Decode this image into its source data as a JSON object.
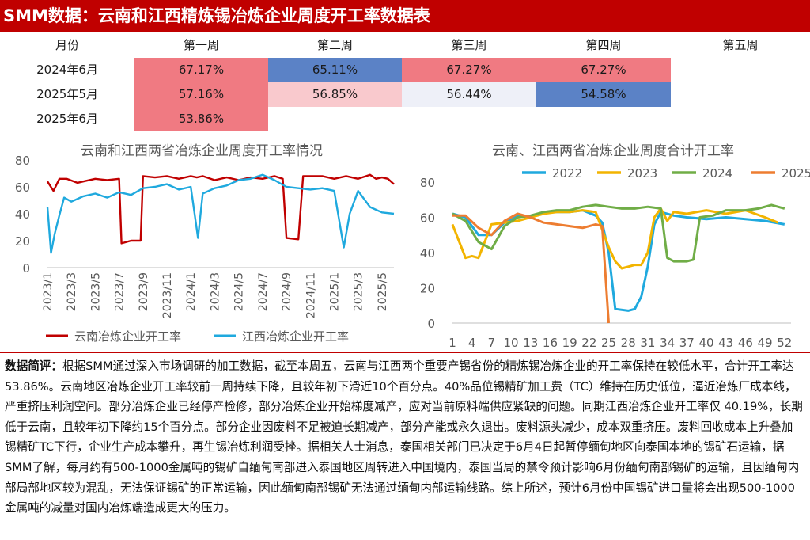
{
  "title": "SMM数据：云南和江西精炼锡冶炼企业周度开工率数据表",
  "table": {
    "header": [
      "月份",
      "第一周",
      "第二周",
      "第三周",
      "第四周",
      "第五周"
    ],
    "rows": [
      {
        "month": "2024年6月",
        "cells": [
          {
            "value": "67.17%",
            "color": "#f07a82"
          },
          {
            "value": "65.11%",
            "color": "#5b82c6"
          },
          {
            "value": "67.27%",
            "color": "#f07a82"
          },
          {
            "value": "67.27%",
            "color": "#f07a82"
          },
          {
            "value": "",
            "color": "#ffffff"
          }
        ]
      },
      {
        "month": "2025年5月",
        "cells": [
          {
            "value": "57.16%",
            "color": "#f07a82"
          },
          {
            "value": "56.85%",
            "color": "#f9c9cd"
          },
          {
            "value": "56.44%",
            "color": "#eef0f8"
          },
          {
            "value": "54.58%",
            "color": "#5b82c6"
          },
          {
            "value": "",
            "color": "#ffffff"
          }
        ]
      },
      {
        "month": "2025年6月",
        "cells": [
          {
            "value": "53.86%",
            "color": "#f07a82"
          },
          {
            "value": "",
            "color": "#ffffff"
          },
          {
            "value": "",
            "color": "#ffffff"
          },
          {
            "value": "",
            "color": "#ffffff"
          },
          {
            "value": "",
            "color": "#ffffff"
          }
        ]
      }
    ]
  },
  "chart_data": [
    {
      "type": "line",
      "title": "云南和江西两省冶炼企业周度开工率情况",
      "xlabel": "",
      "ylabel": "",
      "ylim": [
        0,
        80
      ],
      "yticks": [
        0,
        20,
        40,
        60,
        80
      ],
      "x_range": [
        "2023/1",
        "2025/6"
      ],
      "xticks": [
        "2023/1",
        "2023/3",
        "2023/5",
        "2023/7",
        "2023/9",
        "2023/11",
        "2024/1",
        "2024/3",
        "2024/5",
        "2024/7",
        "2024/9",
        "2024/11",
        "2025/1",
        "2025/3",
        "2025/5"
      ],
      "grid": false,
      "legend_position": "bottom",
      "series": [
        {
          "name": "云南冶炼企业开工率",
          "color": "#c00000",
          "points": [
            [
              "2023/1",
              64
            ],
            [
              "2023/1.5",
              57
            ],
            [
              "2023/2",
              66
            ],
            [
              "2023/2.6",
              66
            ],
            [
              "2023/3.5",
              63
            ],
            [
              "2023/4",
              64
            ],
            [
              "2023/5",
              66
            ],
            [
              "2023/6",
              65
            ],
            [
              "2023/7",
              66
            ],
            [
              "2023/7.2",
              18
            ],
            [
              "2023/8",
              20
            ],
            [
              "2023/8.8",
              20
            ],
            [
              "2023/9",
              68
            ],
            [
              "2023/10",
              67
            ],
            [
              "2023/11",
              68
            ],
            [
              "2023/12",
              66
            ],
            [
              "2024/1",
              68
            ],
            [
              "2024/1.5",
              67
            ],
            [
              "2024/2",
              68
            ],
            [
              "2024/3",
              65
            ],
            [
              "2024/4",
              67
            ],
            [
              "2024/5",
              65
            ],
            [
              "2024/6",
              67
            ],
            [
              "2024/7",
              66
            ],
            [
              "2024/8",
              68
            ],
            [
              "2024/8.7",
              66
            ],
            [
              "2024/9",
              22
            ],
            [
              "2024/10",
              21
            ],
            [
              "2024/10.4",
              68
            ],
            [
              "2024/11",
              68
            ],
            [
              "2024/12",
              68
            ],
            [
              "2025/1",
              66
            ],
            [
              "2025/2",
              68
            ],
            [
              "2025/3",
              66
            ],
            [
              "2025/4",
              69
            ],
            [
              "2025/4.5",
              66
            ],
            [
              "2025/5",
              67
            ],
            [
              "2025/5.5",
              66
            ],
            [
              "2025/6",
              62
            ]
          ]
        },
        {
          "name": "江西冶炼企业开工率",
          "color": "#1fa9de",
          "points": [
            [
              "2023/1",
              45
            ],
            [
              "2023/1.3",
              11
            ],
            [
              "2023/1.6",
              25
            ],
            [
              "2023/2",
              39
            ],
            [
              "2023/2.4",
              52
            ],
            [
              "2023/3",
              49
            ],
            [
              "2023/4",
              53
            ],
            [
              "2023/5",
              55
            ],
            [
              "2023/6",
              52
            ],
            [
              "2023/7",
              56
            ],
            [
              "2023/8",
              54
            ],
            [
              "2023/9",
              59
            ],
            [
              "2023/10",
              60
            ],
            [
              "2023/11",
              62
            ],
            [
              "2023/12",
              58
            ],
            [
              "2024/1",
              60
            ],
            [
              "2024/1.6",
              22
            ],
            [
              "2024/2",
              55
            ],
            [
              "2024/3",
              59
            ],
            [
              "2024/4",
              61
            ],
            [
              "2024/5",
              65
            ],
            [
              "2024/6",
              66
            ],
            [
              "2024/7",
              69
            ],
            [
              "2024/8",
              65
            ],
            [
              "2024/9",
              60
            ],
            [
              "2024/10",
              59
            ],
            [
              "2024/11",
              58
            ],
            [
              "2024/12",
              59
            ],
            [
              "2025/1",
              57
            ],
            [
              "2025/1.8",
              15
            ],
            [
              "2025/2.3",
              40
            ],
            [
              "2025/3",
              57
            ],
            [
              "2025/4",
              45
            ],
            [
              "2025/5",
              41
            ],
            [
              "2025/6",
              40
            ]
          ]
        }
      ]
    },
    {
      "type": "line",
      "title": "云南、江西两省冶炼企业周度合计开工率",
      "xlabel": "",
      "ylabel": "",
      "ylim": [
        0,
        80
      ],
      "yticks": [
        0,
        20,
        40,
        60,
        80
      ],
      "xlim": [
        1,
        53
      ],
      "xticks": [
        1,
        4,
        7,
        10,
        13,
        16,
        19,
        22,
        25,
        28,
        31,
        34,
        37,
        40,
        43,
        46,
        49,
        52
      ],
      "grid": false,
      "legend_position": "top",
      "series": [
        {
          "name": "2022",
          "color": "#1fa9de",
          "points": [
            [
              1,
              62
            ],
            [
              3,
              60
            ],
            [
              5,
              50
            ],
            [
              7,
              50
            ],
            [
              9,
              57
            ],
            [
              11,
              61
            ],
            [
              13,
              60
            ],
            [
              15,
              63
            ],
            [
              17,
              63
            ],
            [
              19,
              63
            ],
            [
              21,
              64
            ],
            [
              23,
              61
            ],
            [
              24,
              57
            ],
            [
              25,
              40
            ],
            [
              26,
              8
            ],
            [
              28,
              7
            ],
            [
              29,
              8
            ],
            [
              30,
              15
            ],
            [
              31,
              32
            ],
            [
              32,
              56
            ],
            [
              33,
              63
            ],
            [
              35,
              61
            ],
            [
              37,
              60
            ],
            [
              40,
              59
            ],
            [
              43,
              60
            ],
            [
              46,
              59
            ],
            [
              49,
              58
            ],
            [
              52,
              56
            ]
          ]
        },
        {
          "name": "2023",
          "color": "#f2b400",
          "points": [
            [
              1,
              56
            ],
            [
              3,
              37
            ],
            [
              4,
              38
            ],
            [
              5,
              37
            ],
            [
              7,
              56
            ],
            [
              9,
              57
            ],
            [
              11,
              58
            ],
            [
              13,
              60
            ],
            [
              15,
              62
            ],
            [
              17,
              63
            ],
            [
              19,
              63
            ],
            [
              21,
              64
            ],
            [
              23,
              63
            ],
            [
              25,
              43
            ],
            [
              26,
              35
            ],
            [
              27,
              31
            ],
            [
              28,
              32
            ],
            [
              29,
              33
            ],
            [
              30,
              33
            ],
            [
              31,
              40
            ],
            [
              32,
              60
            ],
            [
              33,
              65
            ],
            [
              34,
              58
            ],
            [
              35,
              63
            ],
            [
              37,
              62
            ],
            [
              40,
              64
            ],
            [
              43,
              62
            ],
            [
              46,
              64
            ],
            [
              49,
              60
            ],
            [
              51,
              57
            ]
          ]
        },
        {
          "name": "2024",
          "color": "#70ad47",
          "points": [
            [
              1,
              62
            ],
            [
              3,
              58
            ],
            [
              5,
              46
            ],
            [
              7,
              42
            ],
            [
              9,
              55
            ],
            [
              11,
              60
            ],
            [
              13,
              61
            ],
            [
              15,
              63
            ],
            [
              17,
              64
            ],
            [
              19,
              64
            ],
            [
              21,
              66
            ],
            [
              23,
              67
            ],
            [
              25,
              66
            ],
            [
              27,
              65
            ],
            [
              29,
              65
            ],
            [
              31,
              66
            ],
            [
              33,
              65
            ],
            [
              34,
              37
            ],
            [
              35,
              35
            ],
            [
              37,
              35
            ],
            [
              38,
              36
            ],
            [
              39,
              60
            ],
            [
              41,
              61
            ],
            [
              43,
              64
            ],
            [
              46,
              64
            ],
            [
              48,
              65
            ],
            [
              50,
              67
            ],
            [
              52,
              65
            ]
          ]
        },
        {
          "name": "2025",
          "color": "#ed7d31",
          "points": [
            [
              1,
              61
            ],
            [
              3,
              61
            ],
            [
              5,
              54
            ],
            [
              7,
              50
            ],
            [
              9,
              58
            ],
            [
              11,
              62
            ],
            [
              13,
              60
            ],
            [
              15,
              57
            ],
            [
              17,
              56
            ],
            [
              19,
              55
            ],
            [
              21,
              54
            ],
            [
              23,
              56
            ],
            [
              24,
              55
            ],
            [
              25,
              0
            ]
          ]
        }
      ]
    }
  ],
  "commentary": {
    "lead": "数据简评：",
    "text": "根据SMM通过深入市场调研的加工数据，截至本周五，云南与江西两个重要产锡省份的精炼锡冶炼企业的开工率保持在较低水平，合计开工率达53.86%。云南地区冶炼企业开工率较前一周持续下降，且较年初下滑近10个百分点。40%品位锡精矿加工费（TC）维持在历史低位，逼近冶炼厂成本线，严重挤压利润空间。部分冶炼企业已经停产检修，部分冶炼企业开始梯度减产，应对当前原料端供应紧缺的问题。同期江西冶炼企业开工率仅 40.19%，长期低于云南，且较年初下降约15个百分点。部分企业因废料不足被迫长期减产，部分产能或永久退出。废料源头减少，成本双重挤压。废料回收成本上升叠加锡精矿TC下行，企业生产成本攀升，再生锡冶炼利润受挫。据相关人士消息，泰国相关部门已决定于6月4日起暂停缅甸地区向泰国本地的锡矿石运输，据SMM了解，每月约有500-1000金属吨的锡矿自缅甸南部进入泰国地区周转进入中国境内，泰国当局的禁令预计影响6月份缅甸南部锡矿的运输，且因缅甸内部局部地区较为混乱，无法保证锡矿的正常运输，因此缅甸南部锡矿无法通过缅甸内部运输线路。综上所述，预计6月份中国锡矿进口量将会出现500-1000金属吨的减量对国内冶炼端造成更大的压力。"
  }
}
